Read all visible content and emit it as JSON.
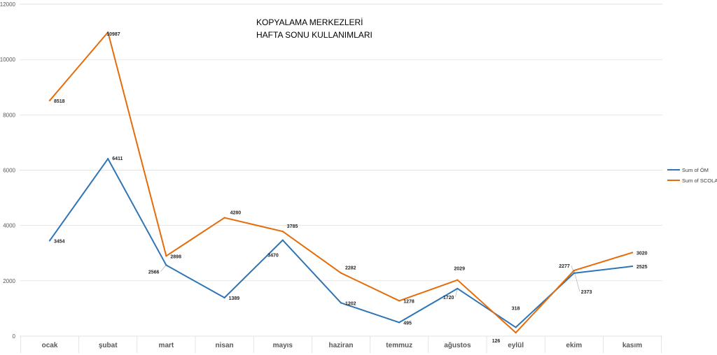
{
  "chart_data": {
    "type": "line",
    "title_lines": [
      "KOPYALAMA MERKEZLERİ",
      "HAFTA SONU KULLANIMLARI"
    ],
    "xlabel": "",
    "ylabel": "",
    "categories": [
      "ocak",
      "şubat",
      "mart",
      "nisan",
      "mayıs",
      "haziran",
      "temmuz",
      "ağustos",
      "eylül",
      "ekim",
      "kasım"
    ],
    "ylim": [
      0,
      12000
    ],
    "yticks": [
      0,
      2000,
      4000,
      6000,
      8000,
      10000,
      12000
    ],
    "grid": true,
    "legend_position": "right",
    "series": [
      {
        "name": "Sum of ÖM",
        "color": "#2e75b6",
        "values": [
          3454,
          6411,
          2566,
          1389,
          3470,
          1202,
          495,
          1720,
          318,
          2277,
          2525
        ],
        "labels": [
          "3454",
          "6411",
          "2566",
          "1389",
          "3470",
          "1202",
          "495",
          "1720",
          "318",
          "2277",
          "2525"
        ]
      },
      {
        "name": "Sum of SCOLA",
        "color": "#e46c0a",
        "values": [
          8518,
          10987,
          2898,
          4280,
          3785,
          2282,
          1278,
          2029,
          126,
          2373,
          3020
        ],
        "labels": [
          "8518",
          "10987",
          "2898",
          "4280",
          "3785",
          "2282",
          "1278",
          "2029",
          "126",
          "2373",
          "3020"
        ]
      }
    ]
  }
}
